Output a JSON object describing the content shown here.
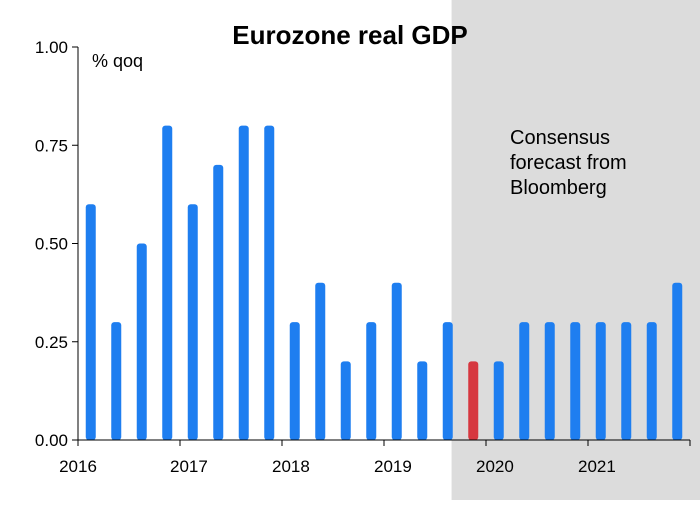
{
  "chart_data": {
    "type": "bar",
    "title": "Eurozone real GDP",
    "ylabel": "% qoq",
    "ylim": [
      0,
      1
    ],
    "yticks": [
      "0.00",
      "0.25",
      "0.50",
      "0.75",
      "1.00"
    ],
    "year_labels": [
      "2016",
      "2017",
      "2018",
      "2019",
      "2020",
      "2021"
    ],
    "categories": [
      "2016 Q1",
      "2016 Q2",
      "2016 Q3",
      "2016 Q4",
      "2017 Q1",
      "2017 Q2",
      "2017 Q3",
      "2017 Q4",
      "2018 Q1",
      "2018 Q2",
      "2018 Q3",
      "2018 Q4",
      "2019 Q1",
      "2019 Q2",
      "2019 Q3",
      "2019 Q4",
      "2020 Q1",
      "2020 Q2",
      "2020 Q3",
      "2020 Q4",
      "2021 Q1",
      "2021 Q2",
      "2021 Q3",
      "2021 Q4"
    ],
    "values": [
      0.6,
      0.3,
      0.5,
      0.8,
      0.6,
      0.7,
      0.8,
      0.8,
      0.3,
      0.4,
      0.2,
      0.3,
      0.4,
      0.2,
      0.3,
      0.2,
      0.2,
      0.3,
      0.3,
      0.3,
      0.3,
      0.3,
      0.3,
      0.4
    ],
    "highlight_index": 15,
    "forecast_start_index": 15,
    "annotation": [
      "Consensus",
      "forecast from",
      "Bloomberg"
    ],
    "colors": {
      "bar": "#1e7ef0",
      "highlight": "#d6373f",
      "forecast_shade": "#dcdcdc",
      "axis": "#000000"
    }
  }
}
